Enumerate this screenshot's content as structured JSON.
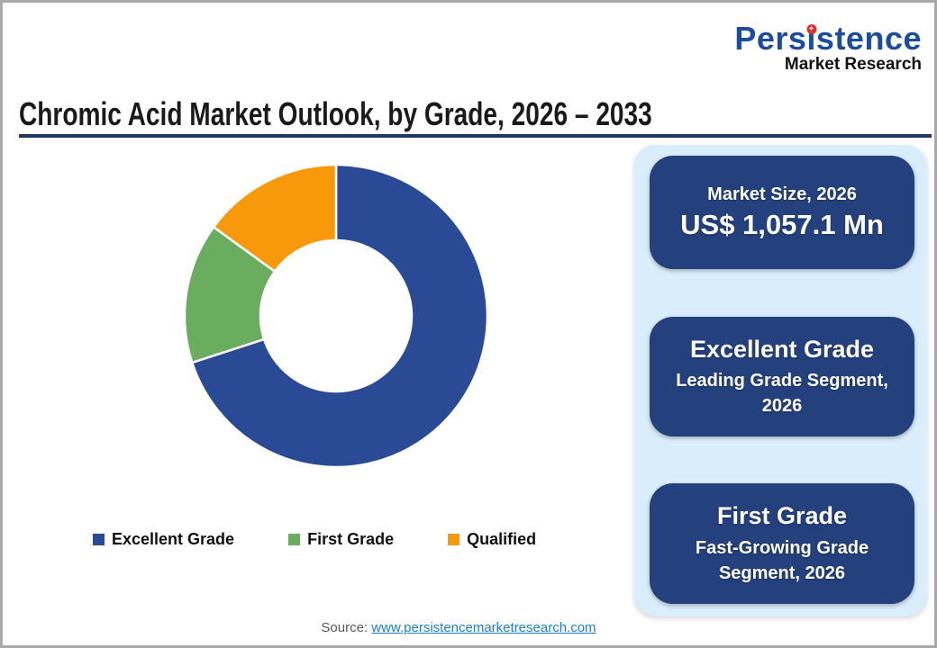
{
  "logo": {
    "brand_main": "Persistence",
    "brand_sub": "Market Research",
    "brand_color": "#1E4C9C",
    "dot_color": "#E0302E",
    "dot_glyph": "✦"
  },
  "header": {
    "title": "Chromic Acid Market Outlook, by Grade, 2026 – 2033",
    "underline_color": "#1F3864"
  },
  "chart_data": {
    "type": "pie",
    "subtype": "donut",
    "title": "Chromic Acid Market Outlook, by Grade, 2026 – 2033",
    "categories": [
      "Excellent Grade",
      "First Grade",
      "Qualified"
    ],
    "values": [
      70,
      15,
      15
    ],
    "unit": "%",
    "colors": [
      "#2B4A96",
      "#6BAD5F",
      "#F8990B"
    ],
    "start_angle_deg": 0,
    "direction": "clockwise",
    "inner_radius_ratio": 0.5,
    "legend_position": "bottom"
  },
  "legend": {
    "items": [
      {
        "label": "Excellent Grade",
        "color": "#2B4A96"
      },
      {
        "label": "First Grade",
        "color": "#6BAD5F"
      },
      {
        "label": "Qualified",
        "color": "#F8990B"
      }
    ]
  },
  "panel": {
    "bg_color": "#D9EDFB",
    "card_color": "#24417E",
    "cards": [
      {
        "title": "Market Size, 2026",
        "value": "US$ 1,057.1 Mn"
      },
      {
        "title": "Excellent Grade",
        "subtitle": "Leading Grade Segment, 2026"
      },
      {
        "title": "First Grade",
        "subtitle": "Fast-Growing Grade Segment, 2026"
      }
    ]
  },
  "footer": {
    "source_label": "Source:",
    "source_link": "www.persistencemarketresearch.com",
    "link_color": "#1E7EC8"
  }
}
